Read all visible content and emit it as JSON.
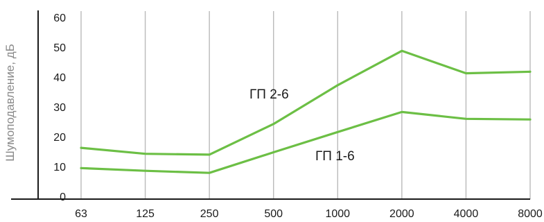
{
  "chart_data": {
    "type": "line",
    "title": "",
    "xlabel": "",
    "ylabel": "Шумоподавление, дБ",
    "categories": [
      "63",
      "125",
      "250",
      "500",
      "1000",
      "2000",
      "4000",
      "8000"
    ],
    "y_ticks": [
      "0",
      "10",
      "20",
      "30",
      "40",
      "50",
      "60"
    ],
    "ylim": [
      0,
      60
    ],
    "grid": "vertical",
    "series": [
      {
        "name": "ГП 2-6",
        "color": "#6cbf45",
        "values": [
          16.5,
          14.5,
          14.2,
          24.5,
          37.5,
          49,
          41.5,
          42
        ]
      },
      {
        "name": "ГП 1-6",
        "color": "#6cbf45",
        "values": [
          9.7,
          8.8,
          8.1,
          15,
          21.8,
          28.5,
          26.2,
          26
        ]
      }
    ]
  }
}
